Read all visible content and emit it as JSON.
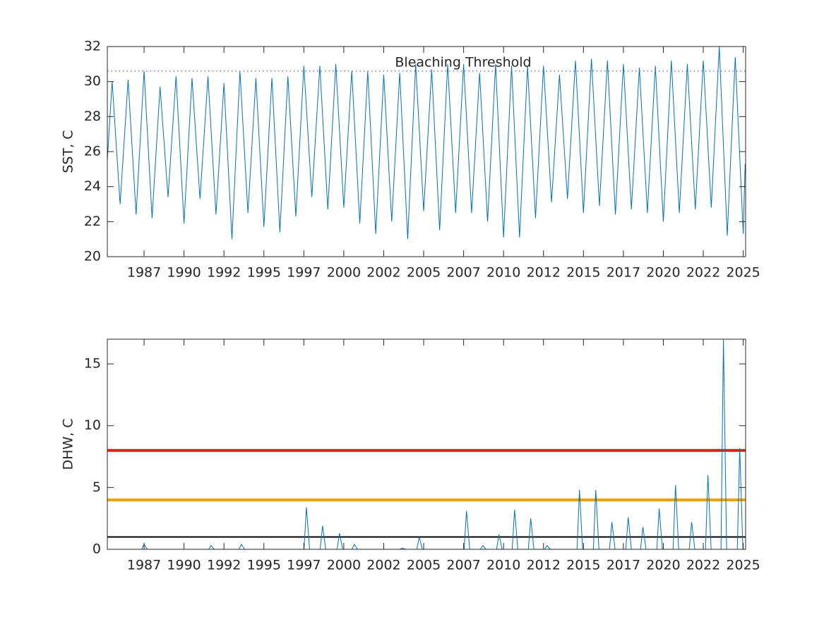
{
  "chart_data": [
    {
      "type": "line",
      "ylabel": "SST, C",
      "x": [
        1985.2,
        1985.5,
        1986.0,
        1986.5,
        1987.0,
        1987.5,
        1988.0,
        1988.5,
        1989.0,
        1989.5,
        1990.0,
        1990.5,
        1991.0,
        1991.5,
        1992.0,
        1992.5,
        1993.0,
        1993.5,
        1994.0,
        1994.5,
        1995.0,
        1995.5,
        1996.0,
        1996.5,
        1997.0,
        1997.5,
        1998.0,
        1998.5,
        1999.0,
        1999.5,
        2000.0,
        2000.5,
        2001.0,
        2001.5,
        2002.0,
        2002.5,
        2003.0,
        2003.5,
        2004.0,
        2004.5,
        2005.0,
        2005.5,
        2006.0,
        2006.5,
        2007.0,
        2007.5,
        2008.0,
        2008.5,
        2009.0,
        2009.5,
        2010.0,
        2010.5,
        2011.0,
        2011.5,
        2012.0,
        2012.5,
        2013.0,
        2013.5,
        2014.0,
        2014.5,
        2015.0,
        2015.5,
        2016.0,
        2016.5,
        2017.0,
        2017.5,
        2018.0,
        2018.5,
        2019.0,
        2019.5,
        2020.0,
        2020.5,
        2021.0,
        2021.5,
        2022.0,
        2022.5,
        2023.0,
        2023.5,
        2024.0,
        2024.5,
        2025.0,
        2025.12
      ],
      "values": [
        25.5,
        30.0,
        23.0,
        30.1,
        22.4,
        30.6,
        22.2,
        29.7,
        23.4,
        30.3,
        21.9,
        30.2,
        23.3,
        30.3,
        22.4,
        29.9,
        21.0,
        30.6,
        22.5,
        30.2,
        21.7,
        30.2,
        21.4,
        30.3,
        22.3,
        30.9,
        23.4,
        30.9,
        22.7,
        31.0,
        22.8,
        30.6,
        21.9,
        30.6,
        21.3,
        30.4,
        22.0,
        30.5,
        21.0,
        31.0,
        22.6,
        30.7,
        21.5,
        31.0,
        22.5,
        31.0,
        22.5,
        30.5,
        22.0,
        31.0,
        21.1,
        30.9,
        21.1,
        30.9,
        22.2,
        30.9,
        23.1,
        30.4,
        23.3,
        31.2,
        22.5,
        31.3,
        22.9,
        31.2,
        22.4,
        31.0,
        22.7,
        30.8,
        22.5,
        30.9,
        22.0,
        31.2,
        22.5,
        31.0,
        22.7,
        31.2,
        22.8,
        32.0,
        21.2,
        31.4,
        21.3,
        25.3
      ],
      "color": "#0072bd",
      "xlim": [
        1985.2,
        2025.15
      ],
      "xticks": [
        {
          "value": 1987.5,
          "label": "1987"
        },
        1990,
        {
          "value": 1992.5,
          "label": "1992"
        },
        1995,
        {
          "value": 1997.5,
          "label": "1997"
        },
        2000,
        {
          "value": 2002.5,
          "label": "2002"
        },
        2005,
        {
          "value": 2007.5,
          "label": "2007"
        },
        2010,
        {
          "value": 2012.5,
          "label": "2012"
        },
        2015,
        {
          "value": 2017.5,
          "label": "2017"
        },
        2020,
        {
          "value": 2022.5,
          "label": "2022"
        },
        2025
      ],
      "ylim": [
        20,
        32
      ],
      "yticks": [
        20,
        22,
        24,
        26,
        28,
        30,
        32
      ],
      "threshold": {
        "value": 30.6,
        "label": "Bleaching Threshold",
        "color": "#7a7ad8"
      }
    },
    {
      "type": "line",
      "ylabel": "DHW, C",
      "x": [
        1985.2,
        1987.35,
        1987.5,
        1987.7,
        1991.54,
        1991.69,
        1991.89,
        1993.44,
        1993.59,
        1993.79,
        1997.51,
        1997.66,
        1997.86,
        1998.52,
        1998.67,
        1998.87,
        1999.58,
        1999.73,
        1999.93,
        2000.51,
        2000.66,
        2000.86,
        2003.51,
        2003.66,
        2003.86,
        2004.57,
        2004.72,
        2004.92,
        2007.53,
        2007.68,
        2007.88,
        2008.55,
        2008.7,
        2008.9,
        2009.56,
        2009.71,
        2009.91,
        2010.54,
        2010.69,
        2010.89,
        2011.55,
        2011.7,
        2011.9,
        2012.57,
        2012.72,
        2012.92,
        2014.6,
        2014.75,
        2014.95,
        2015.62,
        2015.77,
        2015.97,
        2016.63,
        2016.78,
        2016.98,
        2017.65,
        2017.8,
        2018.0,
        2018.57,
        2018.72,
        2018.92,
        2019.59,
        2019.74,
        2019.94,
        2020.61,
        2020.76,
        2020.96,
        2021.62,
        2021.77,
        2021.97,
        2022.64,
        2022.79,
        2022.99,
        2023.61,
        2023.76,
        2023.96,
        2024.63,
        2024.78,
        2024.98,
        2025.12
      ],
      "values": [
        0,
        0,
        0.4,
        0,
        0,
        0.3,
        0,
        0,
        0.4,
        0,
        0,
        3.4,
        0,
        0,
        1.9,
        0,
        0,
        1.3,
        0,
        0,
        0.4,
        0,
        0,
        0.1,
        0,
        0,
        1.0,
        0,
        0,
        3.1,
        0,
        0,
        0.3,
        0,
        0,
        1.2,
        0,
        0,
        3.2,
        0,
        0,
        2.5,
        0,
        0,
        0.3,
        0,
        0,
        4.8,
        0,
        0,
        4.8,
        0,
        0,
        2.2,
        0,
        0,
        2.6,
        0,
        0,
        1.8,
        0,
        0,
        3.3,
        0,
        0,
        5.2,
        0,
        0,
        2.2,
        0,
        0,
        6.0,
        0,
        0,
        17.0,
        0,
        0,
        8.2,
        0,
        0
      ],
      "color": "#0072bd",
      "xlim": [
        1985.2,
        2025.15
      ],
      "xticks": [
        {
          "value": 1987.5,
          "label": "1987"
        },
        1990,
        {
          "value": 1992.5,
          "label": "1992"
        },
        1995,
        {
          "value": 1997.5,
          "label": "1997"
        },
        2000,
        {
          "value": 2002.5,
          "label": "2002"
        },
        2005,
        {
          "value": 2007.5,
          "label": "2007"
        },
        2010,
        {
          "value": 2012.5,
          "label": "2012"
        },
        2015,
        {
          "value": 2017.5,
          "label": "2017"
        },
        2020,
        {
          "value": 2022.5,
          "label": "2022"
        },
        2025
      ],
      "ylim": [
        0,
        17
      ],
      "yticks": [
        0,
        5,
        10,
        15
      ],
      "hlines": [
        {
          "value": 1,
          "color": "#000000"
        },
        {
          "value": 4,
          "color": "#f0a000"
        },
        {
          "value": 8,
          "color": "#e41a1a"
        }
      ]
    }
  ]
}
